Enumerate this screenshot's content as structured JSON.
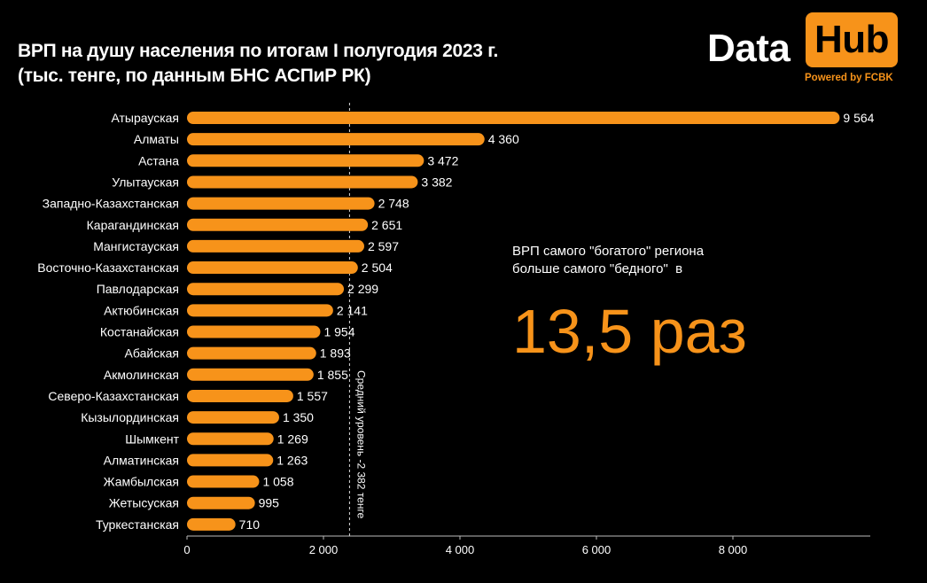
{
  "header": {
    "title_line1": "ВРП на душу населения по итогам I полугодия 2023 г.",
    "title_line2": "(тыс. тенге, по данным БНС АСПиР РК)"
  },
  "logo": {
    "word1": "Data",
    "word2": "Hub",
    "tagline": "Powered by FCBK"
  },
  "callout": {
    "text": "ВРП самого \"богатого\" региона\nбольше самого \"бедного\"  в",
    "big_value": "13,5 раз"
  },
  "colors": {
    "bar": "#f7931a",
    "text": "#ffffff",
    "background": "#000000",
    "axis": "#bbbbbb"
  },
  "chart_data": {
    "type": "bar",
    "orientation": "horizontal",
    "title": "ВРП на душу населения по итогам I полугодия 2023 г. (тыс. тенге, по данным БНС АСПиР РК)",
    "categories": [
      "Атырауская",
      "Алматы",
      "Астана",
      "Улытауская",
      "Западно-Казахстанская",
      "Карагандинская",
      "Мангистауская",
      "Восточно-Казахстанская",
      "Павлодарская",
      "Актюбинская",
      "Костанайская",
      "Абайская",
      "Акмолинская",
      "Северо-Казахстанская",
      "Кызылординская",
      "Шымкент",
      "Алматинская",
      "Жамбылская",
      "Жетысуская",
      "Туркестанская"
    ],
    "values": [
      9564,
      4360,
      3472,
      3382,
      2748,
      2651,
      2597,
      2504,
      2299,
      2141,
      1954,
      1893,
      1855,
      1557,
      1350,
      1269,
      1263,
      1058,
      995,
      710
    ],
    "value_labels": [
      "9 564",
      "4 360",
      "3 472",
      "3 382",
      "2 748",
      "2 651",
      "2 597",
      "2 504",
      "2 299",
      "2 141",
      "1 954",
      "1 893",
      "1 855",
      "1 557",
      "1 350",
      "1 269",
      "1 263",
      "1 058",
      "995",
      "710"
    ],
    "xlim": [
      0,
      10000
    ],
    "xticks": [
      0,
      2000,
      4000,
      6000,
      8000
    ],
    "xtick_labels": [
      "0",
      "2 000",
      "4 000",
      "6 000",
      "8 000"
    ],
    "reference_line": {
      "value": 2382,
      "label": "Средний уровень -2 382 тенге"
    },
    "xlabel": "",
    "ylabel": "",
    "grid": false,
    "legend": "none"
  }
}
